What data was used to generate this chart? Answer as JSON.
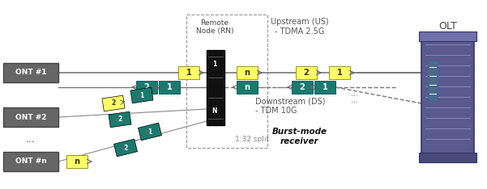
{
  "bg_color": "#ffffff",
  "ont_color": "#666666",
  "ont_text_color": "#ffffff",
  "yellow_color": "#ffff66",
  "teal_color": "#1a7a6e",
  "splitter_color": "#111111",
  "line_color": "#777777",
  "label_color": "#666666",
  "rn_border_color": "#999999",
  "ont_labels": [
    "ONT #1",
    "ONT #2",
    "ONT #n"
  ],
  "upstream_label": "Upstream (US)\n- TDMA 2.5G",
  "downstream_label": "Downstream (DS)\n- TDM 10G",
  "burst_label": "Burst-mode\nreceiver",
  "olt_label": "OLT",
  "rn_label": "Remote\nNode (RN)",
  "split_label": "1:32 split"
}
